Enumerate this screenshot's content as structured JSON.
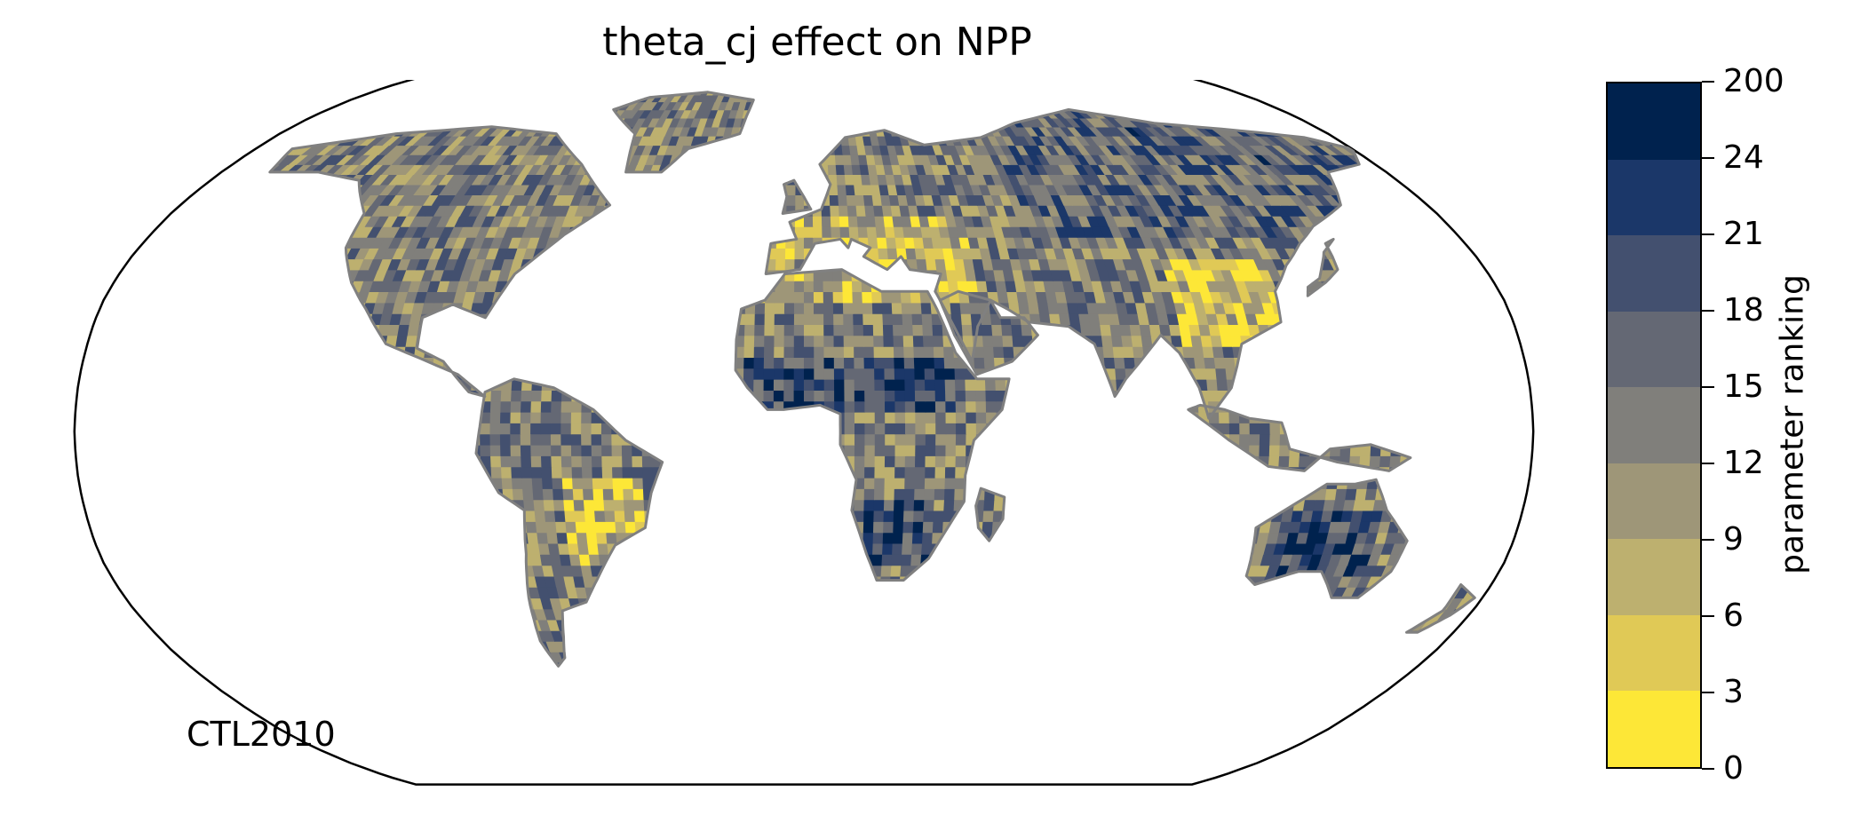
{
  "title": "theta_cj effect on NPP",
  "run_label": "CTL2010",
  "colorbar": {
    "label": "parameter ranking",
    "ticks": [
      "0",
      "3",
      "6",
      "9",
      "12",
      "15",
      "18",
      "21",
      "24",
      "200"
    ],
    "colors": [
      "#fde737",
      "#e0c956",
      "#bdb06f",
      "#9e9678",
      "#807f7b",
      "#646874",
      "#43506f",
      "#1b3769",
      "#00224e"
    ]
  },
  "map": {
    "projection": "robinson",
    "ocean_color": "#ffffff",
    "coastline_color": "#808080"
  }
}
